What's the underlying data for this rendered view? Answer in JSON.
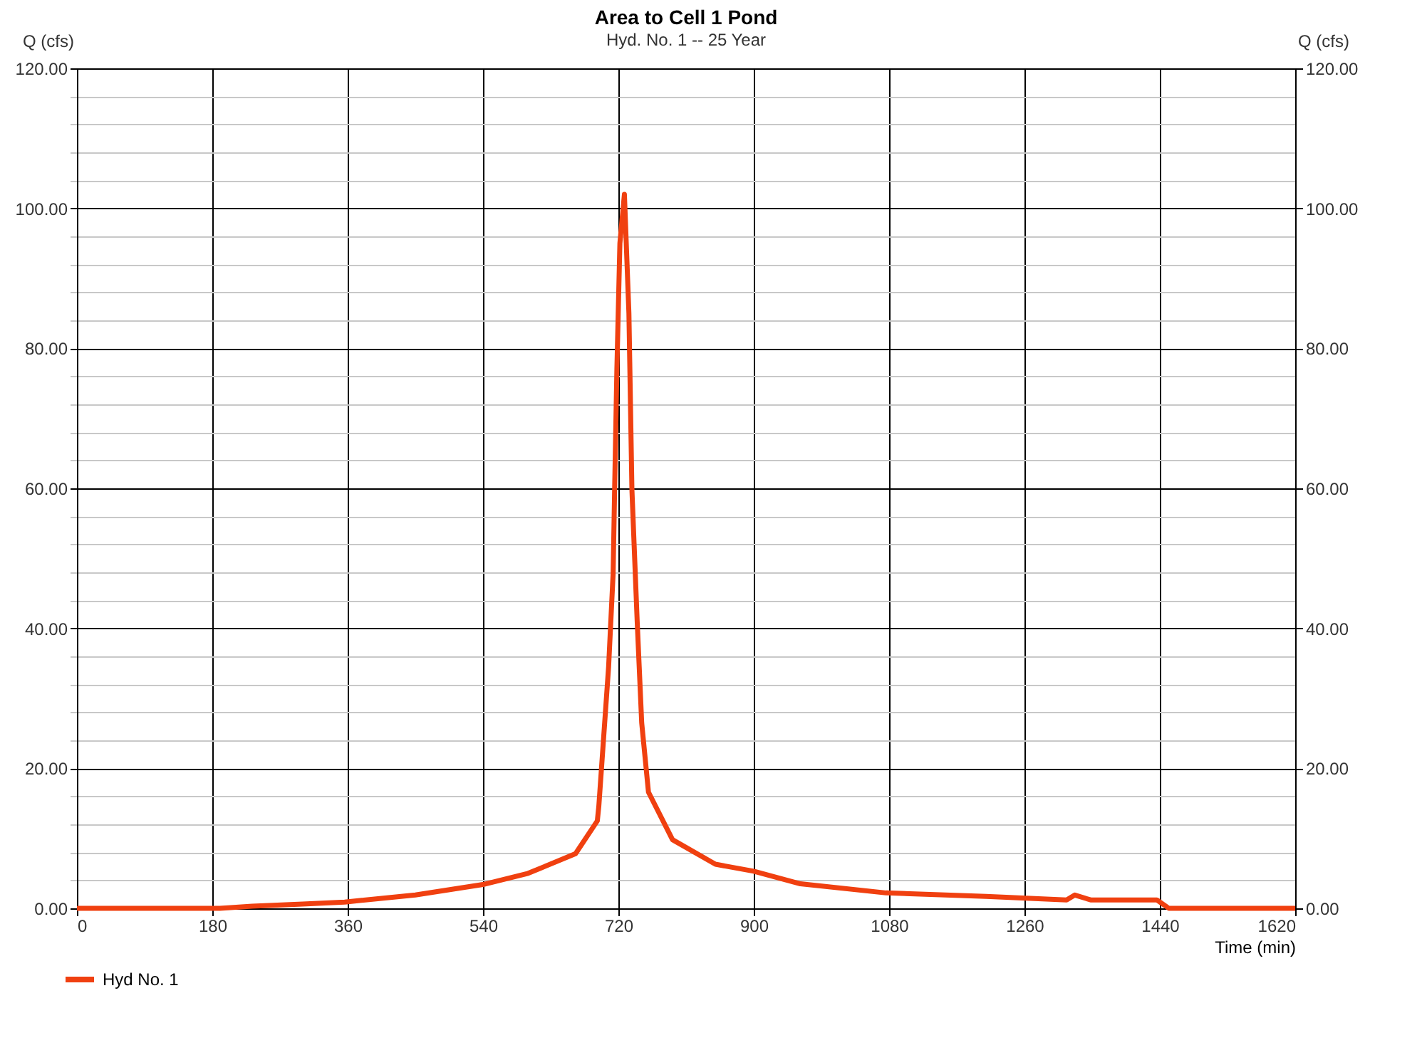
{
  "chart_data": {
    "type": "line",
    "title": "Area to Cell 1 Pond",
    "subtitle": "Hyd. No. 1 -- 25 Year",
    "xlabel": "Time (min)",
    "ylabel": "Q (cfs)",
    "y2label": "Q (cfs)",
    "x": [
      0,
      190,
      233,
      300,
      356,
      450,
      540,
      600,
      663,
      692,
      694,
      700,
      707,
      713,
      715,
      718,
      722,
      728,
      734,
      738,
      745,
      751,
      760,
      792,
      849,
      900,
      962,
      1076,
      1209,
      1316,
      1327,
      1348,
      1436,
      1452,
      1620
    ],
    "series": [
      {
        "name": "Hyd No. 1",
        "color": "#f04010",
        "values": [
          0,
          0,
          0.3,
          0.6,
          0.9,
          1.9,
          3.4,
          5.0,
          7.8,
          12.5,
          14.6,
          23.8,
          34.5,
          47.8,
          59.8,
          77,
          95,
          102,
          85,
          59.8,
          41,
          26.5,
          16.6,
          9.8,
          6.3,
          5.3,
          3.5,
          2.2,
          1.7,
          1.2,
          1.9,
          1.2,
          1.2,
          0,
          0
        ]
      }
    ],
    "xlim": [
      0,
      1620
    ],
    "xticks": [
      0,
      180,
      360,
      540,
      720,
      900,
      1080,
      1260,
      1440,
      1620
    ],
    "ylim": [
      0,
      120
    ],
    "yticks": [
      {
        "value": 0,
        "label": "0.00"
      },
      {
        "value": 4,
        "label": null
      },
      {
        "value": 8,
        "label": null
      },
      {
        "value": 12,
        "label": null
      },
      {
        "value": 16,
        "label": null
      },
      {
        "value": 20,
        "label": "20.00"
      },
      {
        "value": 24,
        "label": null
      },
      {
        "value": 28,
        "label": null
      },
      {
        "value": 32,
        "label": null
      },
      {
        "value": 36,
        "label": null
      },
      {
        "value": 40,
        "label": "40.00"
      },
      {
        "value": 44,
        "label": null
      },
      {
        "value": 48,
        "label": null
      },
      {
        "value": 52,
        "label": null
      },
      {
        "value": 56,
        "label": null
      },
      {
        "value": 60,
        "label": "60.00"
      },
      {
        "value": 64,
        "label": null
      },
      {
        "value": 68,
        "label": null
      },
      {
        "value": 72,
        "label": null
      },
      {
        "value": 76,
        "label": null
      },
      {
        "value": 80,
        "label": "80.00"
      },
      {
        "value": 84,
        "label": null
      },
      {
        "value": 88,
        "label": null
      },
      {
        "value": 92,
        "label": null
      },
      {
        "value": 96,
        "label": null
      },
      {
        "value": 100,
        "label": "100.00"
      },
      {
        "value": 104,
        "label": null
      },
      {
        "value": 108,
        "label": null
      },
      {
        "value": 112,
        "label": null
      },
      {
        "value": 116,
        "label": null
      },
      {
        "value": 120,
        "label": "120.00"
      }
    ],
    "y2lim": [
      0,
      120
    ],
    "y2ticks": [
      {
        "value": 0,
        "label": "0.00"
      },
      {
        "value": 20,
        "label": "20.00"
      },
      {
        "value": 40,
        "label": "40.00"
      },
      {
        "value": 60,
        "label": "60.00"
      },
      {
        "value": 80,
        "label": "80.00"
      },
      {
        "value": 100,
        "label": "100.00"
      },
      {
        "value": 120,
        "label": "120.00"
      }
    ],
    "grid": true,
    "legend": "bottom left",
    "marker": "none",
    "line_style": "solid"
  }
}
